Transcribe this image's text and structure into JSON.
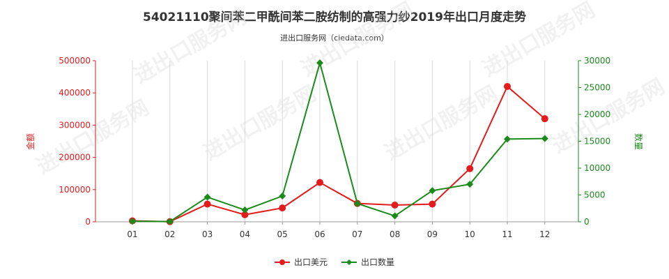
{
  "chart_data": {
    "type": "line",
    "title": "54021110聚间苯二甲酰间苯二胺纺制的高强力纱2019年出口月度走势",
    "subtitle": "进出口服务网（ciedata.com）",
    "categories": [
      "01",
      "02",
      "03",
      "04",
      "05",
      "06",
      "07",
      "08",
      "09",
      "10",
      "11",
      "12"
    ],
    "y_left": {
      "label": "金额",
      "range": [
        0,
        500000
      ],
      "ticks": [
        "0",
        "100000",
        "200000",
        "300000",
        "400000",
        "500000"
      ],
      "color": "#e41a1c"
    },
    "y_right": {
      "label": "数量",
      "range": [
        0,
        30000
      ],
      "ticks": [
        "0",
        "5000",
        "10000",
        "15000",
        "20000",
        "25000",
        "30000"
      ],
      "color": "#1a8a1a"
    },
    "series": [
      {
        "name": "出口美元",
        "axis": "left",
        "color": "#e41a1c",
        "values": [
          3000,
          500,
          55000,
          22000,
          43000,
          122000,
          57000,
          52000,
          55000,
          165000,
          420000,
          320000
        ]
      },
      {
        "name": "出口数量",
        "axis": "right",
        "color": "#1a8a1a",
        "values": [
          100,
          50,
          4600,
          2200,
          4800,
          29600,
          3400,
          1100,
          5800,
          7000,
          15400,
          15500
        ]
      }
    ],
    "grid": "vertical",
    "legend_position": "bottom-center",
    "watermark": "进出口服务网"
  }
}
